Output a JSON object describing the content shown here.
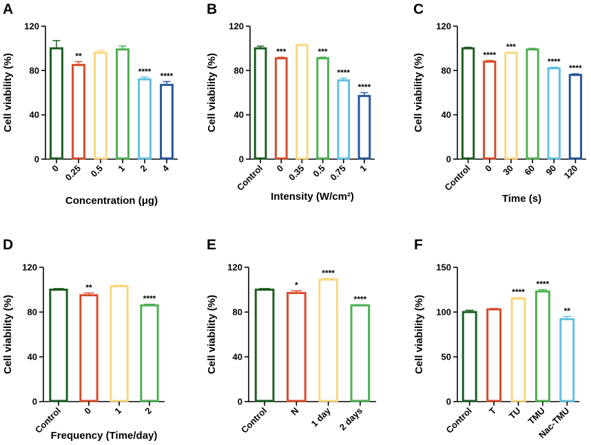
{
  "chart_data": [
    {
      "panel": "A",
      "type": "bar",
      "categories": [
        "0",
        "0.25",
        "0.5",
        "1",
        "2",
        "4"
      ],
      "values": [
        100,
        85,
        96,
        99,
        72,
        67
      ],
      "errors": [
        7,
        3,
        2,
        3,
        2,
        3
      ],
      "significance": [
        "",
        "**",
        "",
        "",
        "****",
        "****"
      ],
      "colors": [
        "#1b5e20",
        "#d84b2a",
        "#f9d77e",
        "#4caf50",
        "#62c0e0",
        "#25559b"
      ],
      "xlabel": "Concentration (μg)",
      "ylabel": "Cell viability (%)",
      "ylim": [
        0,
        120
      ],
      "yticks": [
        0,
        40,
        80,
        120
      ],
      "rotate_ticks": true
    },
    {
      "panel": "B",
      "type": "bar",
      "categories": [
        "Control",
        "0",
        "0.35",
        "0.5",
        "0.75",
        "1"
      ],
      "values": [
        100,
        91,
        103,
        91,
        71,
        57
      ],
      "errors": [
        2,
        1,
        0.5,
        1,
        2,
        3
      ],
      "significance": [
        "",
        "***",
        "",
        "***",
        "****",
        "****"
      ],
      "colors": [
        "#1b5e20",
        "#d84b2a",
        "#f9d77e",
        "#4caf50",
        "#62c0e0",
        "#25559b"
      ],
      "xlabel": "Intensity (W/cm²)",
      "ylabel": "Cell viability (%)",
      "ylim": [
        0,
        120
      ],
      "yticks": [
        0,
        40,
        80,
        120
      ],
      "rotate_ticks": true
    },
    {
      "panel": "C",
      "type": "bar",
      "categories": [
        "Control",
        "0",
        "30",
        "60",
        "90",
        "120"
      ],
      "values": [
        100,
        88,
        96,
        99,
        82,
        76
      ],
      "errors": [
        1,
        1,
        0.5,
        1,
        1,
        1
      ],
      "significance": [
        "",
        "****",
        "***",
        "",
        "****",
        "****"
      ],
      "colors": [
        "#1b5e20",
        "#d84b2a",
        "#f9d77e",
        "#4caf50",
        "#62c0e0",
        "#25559b"
      ],
      "xlabel": "Time (s)",
      "ylabel": "Cell viability (%)",
      "ylim": [
        0,
        120
      ],
      "yticks": [
        0,
        40,
        80,
        120
      ],
      "rotate_ticks": true
    },
    {
      "panel": "D",
      "type": "bar",
      "categories": [
        "Control",
        "0",
        "1",
        "2"
      ],
      "values": [
        100,
        95,
        103,
        86
      ],
      "errors": [
        1,
        2,
        1,
        1
      ],
      "significance": [
        "",
        "**",
        "",
        "****"
      ],
      "colors": [
        "#1b5e20",
        "#d84b2a",
        "#f9d77e",
        "#4caf50"
      ],
      "xlabel": "Frequency (Time/day)",
      "ylabel": "Cell viability (%)",
      "ylim": [
        0,
        120
      ],
      "yticks": [
        0,
        40,
        80,
        120
      ],
      "rotate_ticks": true
    },
    {
      "panel": "E",
      "type": "bar",
      "categories": [
        "Control",
        "N",
        "1 day",
        "2 days"
      ],
      "values": [
        100,
        97,
        109,
        86
      ],
      "errors": [
        1,
        2,
        1,
        0.5
      ],
      "significance": [
        "",
        "*",
        "****",
        "****"
      ],
      "colors": [
        "#1b5e20",
        "#d84b2a",
        "#f9d77e",
        "#4caf50"
      ],
      "xlabel": "",
      "ylabel": "Cell viability (%)",
      "ylim": [
        0,
        120
      ],
      "yticks": [
        0,
        40,
        80,
        120
      ],
      "rotate_ticks": true
    },
    {
      "panel": "F",
      "type": "bar",
      "categories": [
        "Control",
        "T",
        "TU",
        "TMU",
        "Nac-TMU"
      ],
      "values": [
        100,
        103,
        115,
        123,
        92
      ],
      "errors": [
        2,
        1,
        1,
        2,
        3
      ],
      "significance": [
        "",
        "",
        "****",
        "****",
        "**"
      ],
      "colors": [
        "#1b5e20",
        "#d84b2a",
        "#f9d77e",
        "#4caf50",
        "#62c0e0"
      ],
      "xlabel": "",
      "ylabel": "Cell viability (%)",
      "ylim": [
        0,
        150
      ],
      "yticks": [
        0,
        50,
        100,
        150
      ],
      "rotate_ticks": true
    }
  ]
}
